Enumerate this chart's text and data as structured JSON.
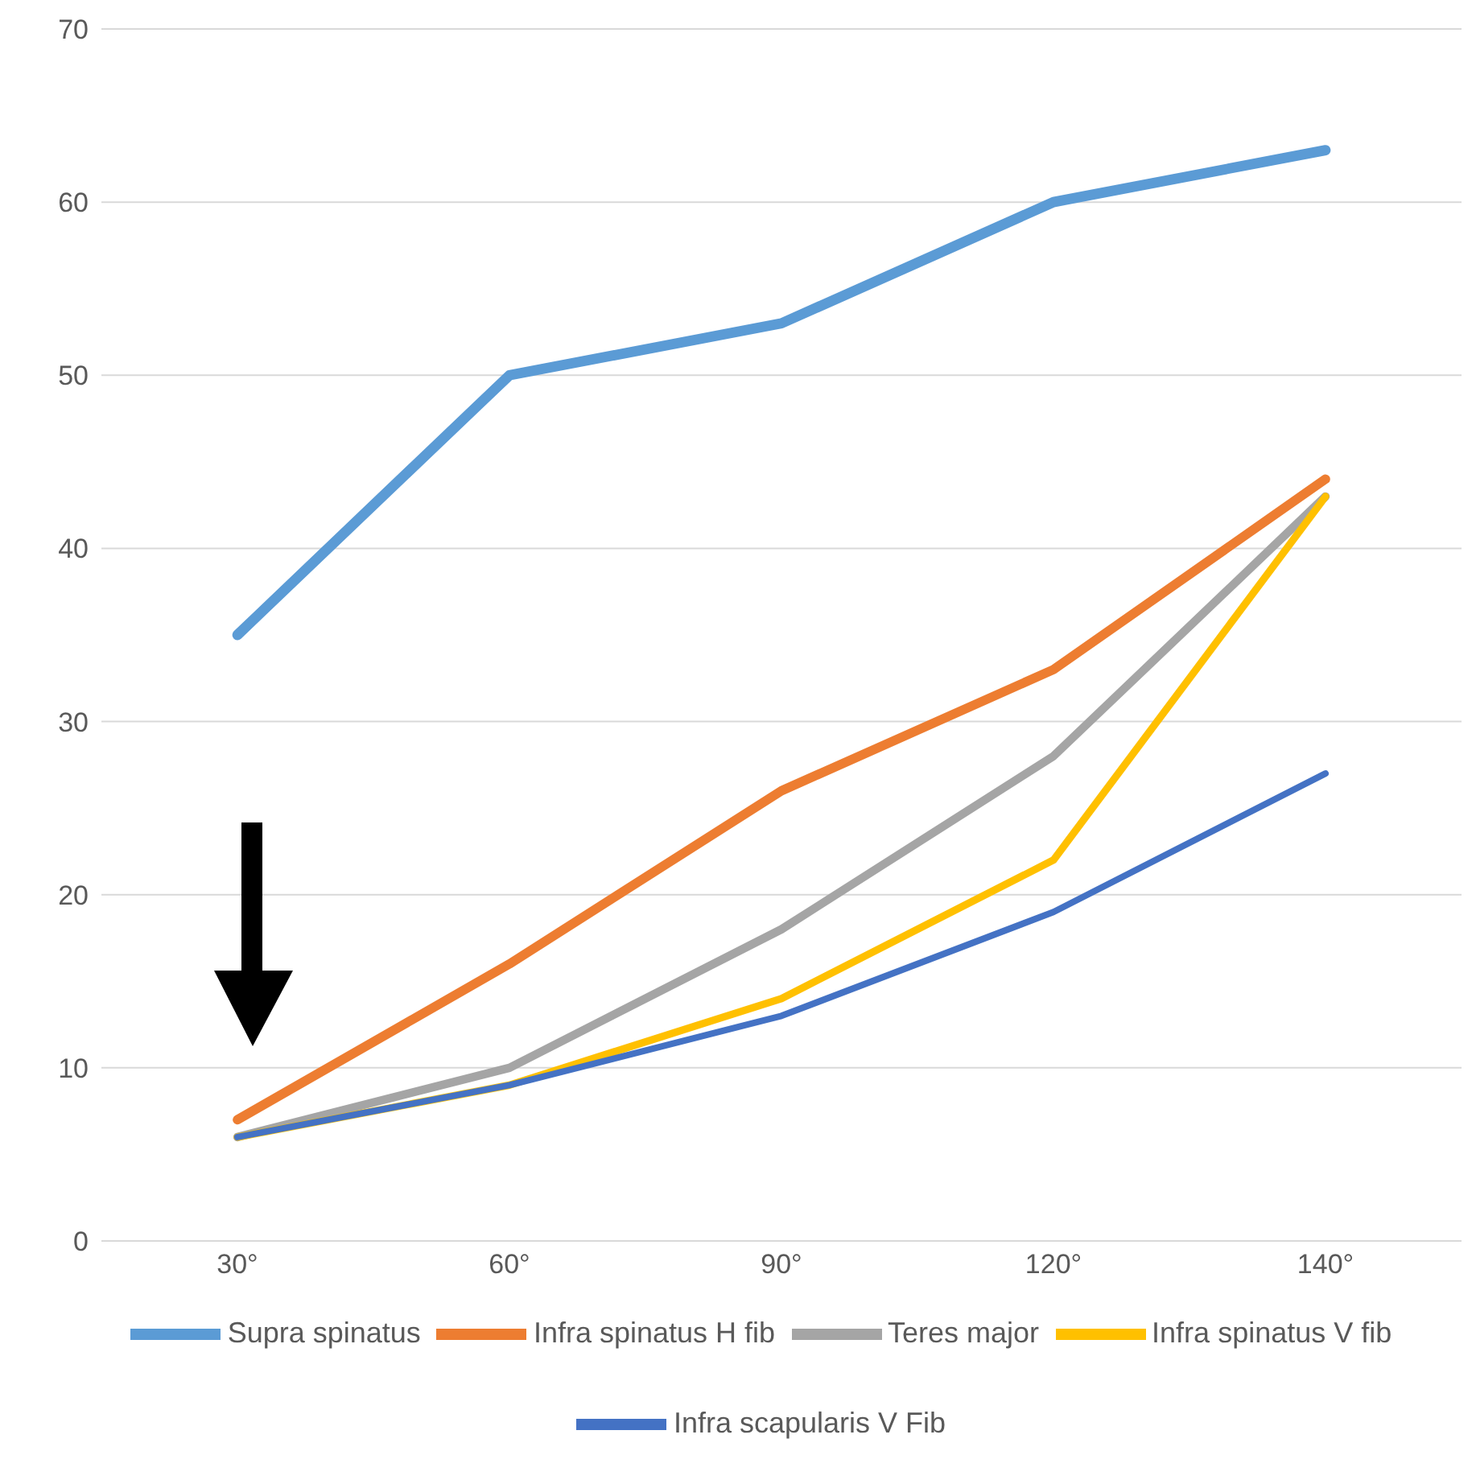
{
  "chart_data": {
    "type": "line",
    "categories": [
      "30°",
      "60°",
      "90°",
      "120°",
      "140°"
    ],
    "series": [
      {
        "name": "Supra spinatus",
        "color": "#5b9bd5",
        "values": [
          35,
          50,
          53,
          60,
          63
        ]
      },
      {
        "name": "Infra spinatus H fib",
        "color": "#ed7d31",
        "values": [
          7,
          16,
          26,
          33,
          44
        ]
      },
      {
        "name": "Teres major",
        "color": "#a5a5a5",
        "values": [
          6,
          10,
          18,
          28,
          43
        ]
      },
      {
        "name": "Infra spinatus V fib",
        "color": "#ffc000",
        "values": [
          6,
          9,
          14,
          22,
          43
        ]
      },
      {
        "name": "Infra scapularis V Fib",
        "color": "#4472c4",
        "values": [
          6,
          9,
          13,
          19,
          27
        ]
      }
    ],
    "ylim": [
      0,
      70
    ],
    "yticks": [
      0,
      10,
      20,
      30,
      40,
      50,
      60,
      70
    ],
    "grid": "y",
    "legend": "bottom",
    "marker": "none",
    "line_style": "solid"
  }
}
